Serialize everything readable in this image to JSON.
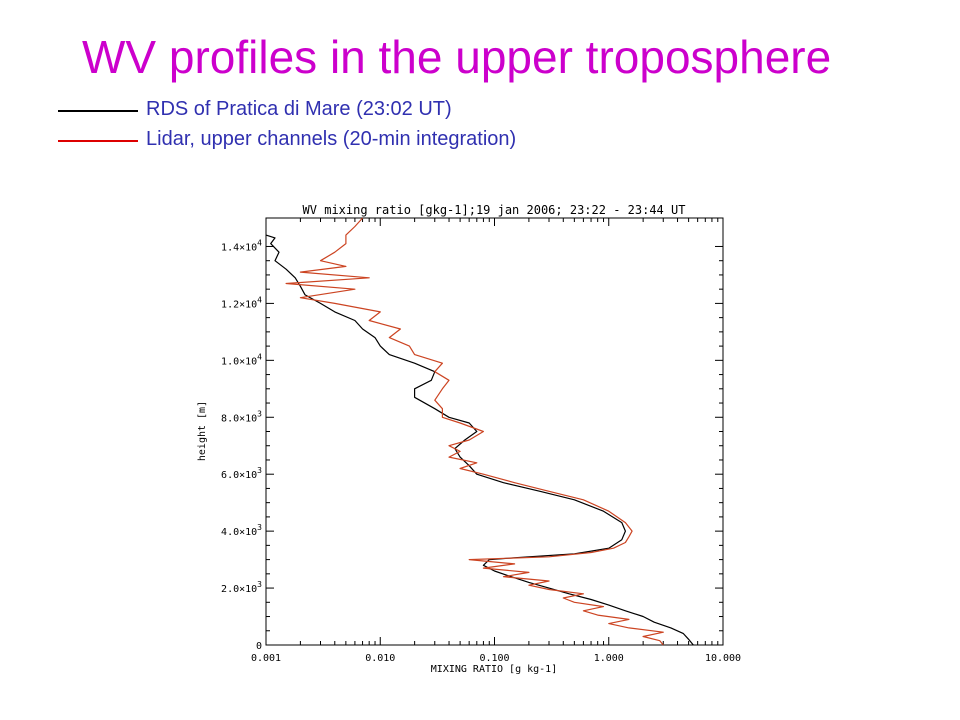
{
  "slide": {
    "title": "WV profiles in the upper troposphere",
    "legend": [
      {
        "label": "RDS of Pratica di Mare (23:02 UT)",
        "color": "#000000"
      },
      {
        "label": "Lidar, upper channels (20-min integration)",
        "color": "#dd0000"
      }
    ]
  },
  "chart_data": {
    "type": "line",
    "title": "WV mixing ratio [gkg-1];19 jan 2006;   23:22 - 23:44 UT",
    "xlabel": "MIXING RATIO [g kg-1]",
    "ylabel": "height [m]",
    "x_scale": "log",
    "xlim": [
      0.001,
      10
    ],
    "ylim": [
      0,
      15000
    ],
    "x_ticks": [
      0.001,
      0.01,
      0.1,
      1,
      10
    ],
    "x_tick_labels": [
      "0.001",
      "0.010",
      "0.100",
      "1.000",
      "10.000"
    ],
    "y_ticks": [
      0,
      2000,
      4000,
      6000,
      8000,
      10000,
      12000,
      14000
    ],
    "y_tick_labels": [
      "0",
      "2.0×10^3",
      "4.0×10^3",
      "6.0×10^3",
      "8.0×10^3",
      "1.0×10^4",
      "1.2×10^4",
      "1.4×10^4"
    ],
    "series": [
      {
        "color": "#000000",
        "points": [
          [
            5.5,
            0
          ],
          [
            5.0,
            200
          ],
          [
            4.5,
            400
          ],
          [
            3.5,
            600
          ],
          [
            2.5,
            800
          ],
          [
            2.0,
            1000
          ],
          [
            1.4,
            1200
          ],
          [
            1.0,
            1400
          ],
          [
            0.7,
            1600
          ],
          [
            0.45,
            1800
          ],
          [
            0.3,
            2000
          ],
          [
            0.2,
            2200
          ],
          [
            0.14,
            2400
          ],
          [
            0.1,
            2600
          ],
          [
            0.08,
            2800
          ],
          [
            0.09,
            3000
          ],
          [
            0.2,
            3100
          ],
          [
            0.5,
            3200
          ],
          [
            1.0,
            3400
          ],
          [
            1.3,
            3700
          ],
          [
            1.4,
            4000
          ],
          [
            1.3,
            4300
          ],
          [
            0.9,
            4700
          ],
          [
            0.5,
            5100
          ],
          [
            0.25,
            5400
          ],
          [
            0.12,
            5700
          ],
          [
            0.07,
            6000
          ],
          [
            0.06,
            6300
          ],
          [
            0.05,
            6600
          ],
          [
            0.045,
            6900
          ],
          [
            0.055,
            7200
          ],
          [
            0.07,
            7500
          ],
          [
            0.06,
            7800
          ],
          [
            0.04,
            8000
          ],
          [
            0.03,
            8300
          ],
          [
            0.02,
            8700
          ],
          [
            0.02,
            9000
          ],
          [
            0.028,
            9300
          ],
          [
            0.03,
            9600
          ],
          [
            0.02,
            9900
          ],
          [
            0.012,
            10200
          ],
          [
            0.01,
            10500
          ],
          [
            0.009,
            10800
          ],
          [
            0.007,
            11100
          ],
          [
            0.006,
            11400
          ],
          [
            0.004,
            11700
          ],
          [
            0.003,
            12000
          ],
          [
            0.0022,
            12300
          ],
          [
            0.002,
            12600
          ],
          [
            0.0018,
            12900
          ],
          [
            0.0015,
            13200
          ],
          [
            0.0012,
            13500
          ],
          [
            0.0013,
            13800
          ],
          [
            0.0011,
            14100
          ],
          [
            0.0012,
            14300
          ],
          [
            0.001,
            14400
          ]
        ]
      },
      {
        "color": "#cc4422",
        "points": [
          [
            3.0,
            0
          ],
          [
            2.8,
            150
          ],
          [
            2.0,
            300
          ],
          [
            3.0,
            450
          ],
          [
            1.5,
            600
          ],
          [
            1.0,
            750
          ],
          [
            1.5,
            900
          ],
          [
            0.8,
            1050
          ],
          [
            0.6,
            1200
          ],
          [
            0.9,
            1350
          ],
          [
            0.5,
            1500
          ],
          [
            0.4,
            1650
          ],
          [
            0.6,
            1800
          ],
          [
            0.3,
            1950
          ],
          [
            0.2,
            2100
          ],
          [
            0.3,
            2250
          ],
          [
            0.12,
            2400
          ],
          [
            0.2,
            2550
          ],
          [
            0.08,
            2700
          ],
          [
            0.15,
            2850
          ],
          [
            0.06,
            3000
          ],
          [
            0.3,
            3100
          ],
          [
            0.7,
            3250
          ],
          [
            1.1,
            3400
          ],
          [
            1.4,
            3600
          ],
          [
            1.5,
            3800
          ],
          [
            1.6,
            4000
          ],
          [
            1.4,
            4300
          ],
          [
            1.0,
            4700
          ],
          [
            0.6,
            5100
          ],
          [
            0.3,
            5400
          ],
          [
            0.15,
            5700
          ],
          [
            0.08,
            6000
          ],
          [
            0.05,
            6200
          ],
          [
            0.07,
            6400
          ],
          [
            0.04,
            6600
          ],
          [
            0.05,
            6800
          ],
          [
            0.04,
            7000
          ],
          [
            0.06,
            7200
          ],
          [
            0.08,
            7500
          ],
          [
            0.05,
            7800
          ],
          [
            0.035,
            8000
          ],
          [
            0.035,
            8300
          ],
          [
            0.03,
            8600
          ],
          [
            0.035,
            9000
          ],
          [
            0.04,
            9300
          ],
          [
            0.03,
            9600
          ],
          [
            0.035,
            9900
          ],
          [
            0.02,
            10200
          ],
          [
            0.018,
            10500
          ],
          [
            0.012,
            10800
          ],
          [
            0.015,
            11100
          ],
          [
            0.008,
            11400
          ],
          [
            0.01,
            11700
          ],
          [
            0.004,
            12000
          ],
          [
            0.002,
            12200
          ],
          [
            0.006,
            12500
          ],
          [
            0.0015,
            12700
          ],
          [
            0.008,
            12900
          ],
          [
            0.002,
            13100
          ],
          [
            0.005,
            13300
          ],
          [
            0.003,
            13500
          ],
          [
            0.004,
            13800
          ],
          [
            0.005,
            14100
          ],
          [
            0.005,
            14400
          ],
          [
            0.006,
            14700
          ],
          [
            0.007,
            15000
          ]
        ]
      }
    ]
  }
}
